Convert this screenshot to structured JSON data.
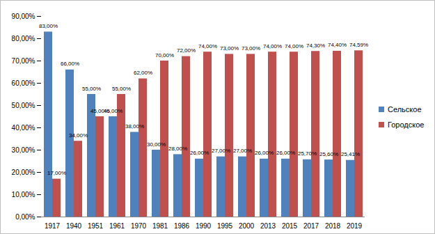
{
  "chart_data": {
    "type": "bar",
    "categories": [
      "1917",
      "1940",
      "1951",
      "1961",
      "1970",
      "1981",
      "1986",
      "1990",
      "1995",
      "2000",
      "2013",
      "2015",
      "2017",
      "2018",
      "2019"
    ],
    "series": [
      {
        "name": "Сельское",
        "color": "#4f81bd",
        "values": [
          83,
          66,
          55,
          45,
          38,
          30,
          28,
          26,
          27,
          27,
          26,
          26,
          25.7,
          25.6,
          25.41
        ],
        "value_labels": [
          "83,00%",
          "66,00%",
          "55,00%",
          "45,00%",
          "38,00%",
          "30,00%",
          "28,00%",
          "26,00%",
          "27,00%",
          "27,00%",
          "26,00%",
          "26,00%",
          "25,70%",
          "25,60%",
          "25,41%"
        ]
      },
      {
        "name": "Городское",
        "color": "#c0504d",
        "values": [
          17,
          34,
          45,
          55,
          62,
          70,
          72,
          74,
          73,
          73,
          74,
          74,
          74.3,
          74.4,
          74.59
        ],
        "value_labels": [
          "17,00%",
          "34,00%",
          "45,00%",
          "55,00%",
          "62,00%",
          "70,00%",
          "72,00%",
          "74,00%",
          "73,00%",
          "73,00%",
          "74,00%",
          "74,00%",
          "74,30%",
          "74,40%",
          "74,59%"
        ]
      }
    ],
    "ylim": [
      0,
      90
    ],
    "yticks": [
      {
        "value": 0,
        "label": "0,00%"
      },
      {
        "value": 10,
        "label": "10,00%"
      },
      {
        "value": 20,
        "label": "20,00%"
      },
      {
        "value": 30,
        "label": "30,00%"
      },
      {
        "value": 40,
        "label": "40,00%"
      },
      {
        "value": 50,
        "label": "50,00%"
      },
      {
        "value": 60,
        "label": "60,00%"
      },
      {
        "value": 70,
        "label": "70,00%"
      },
      {
        "value": 80,
        "label": "80,00%"
      },
      {
        "value": 90,
        "label": "90,00%"
      }
    ],
    "grid": false,
    "legend": "right",
    "data_labels": true
  }
}
